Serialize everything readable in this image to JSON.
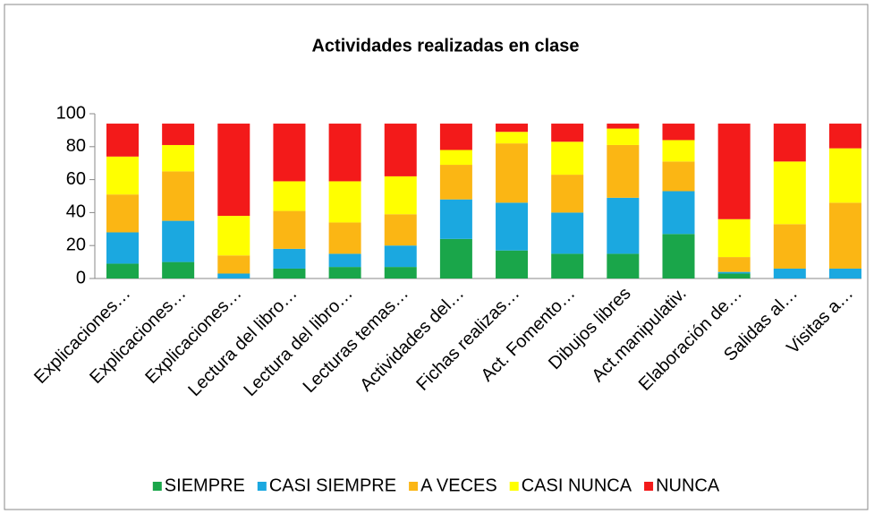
{
  "chart_data": {
    "type": "stacked_bar",
    "title": "Actividades realizadas en clase",
    "categories": [
      "Explicaciones…",
      "Explicaciones…",
      "Explicaciones…",
      "Lectura del libro…",
      "Lectura del libro…",
      "Lecturas temas…",
      "Actividades del…",
      "Fichas realizas…",
      "Act. Fomento…",
      "Dibujos libres",
      "Act.manipulativ.",
      "Elaboración de…",
      "Salidas al…",
      "Visitas a…"
    ],
    "series": [
      {
        "name": "SIEMPRE",
        "color": "#1aa64a",
        "values": [
          9,
          10,
          0,
          6,
          7,
          7,
          24,
          17,
          15,
          15,
          27,
          3,
          0,
          0
        ]
      },
      {
        "name": "CASI SIEMPRE",
        "color": "#1ba8e0",
        "values": [
          19,
          25,
          3,
          12,
          8,
          13,
          24,
          29,
          25,
          34,
          26,
          1,
          6,
          6
        ]
      },
      {
        "name": "A VECES",
        "color": "#fbb614",
        "values": [
          23,
          30,
          11,
          23,
          19,
          19,
          21,
          36,
          23,
          32,
          18,
          9,
          27,
          40
        ]
      },
      {
        "name": "CASI NUNCA",
        "color": "#ffff00",
        "values": [
          23,
          16,
          24,
          18,
          25,
          23,
          9,
          7,
          20,
          10,
          13,
          23,
          38,
          33
        ]
      },
      {
        "name": "NUNCA",
        "color": "#f31a1a",
        "values": [
          20,
          13,
          56,
          35,
          35,
          32,
          16,
          5,
          11,
          3,
          10,
          58,
          23,
          15
        ]
      }
    ],
    "ylim": [
      0,
      100
    ],
    "yticks": [
      0,
      20,
      40,
      60,
      80,
      100
    ],
    "legend": "bottom"
  }
}
